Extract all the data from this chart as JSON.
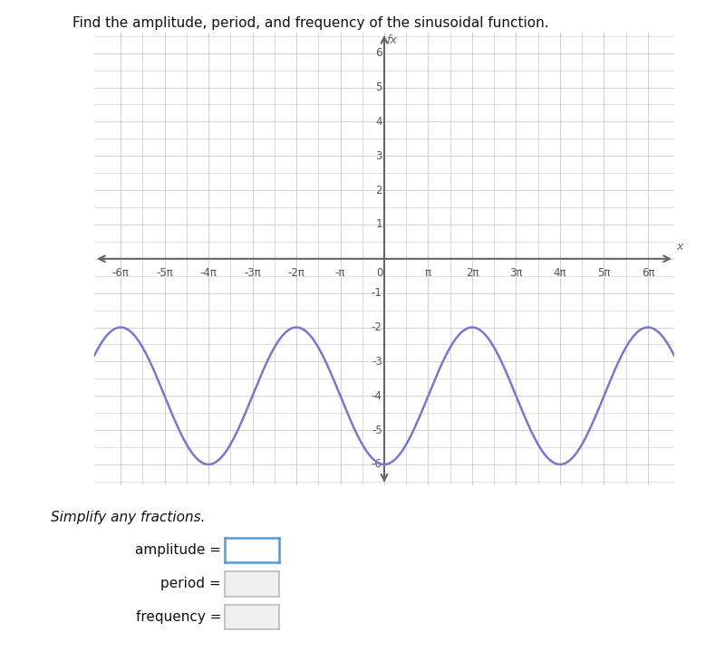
{
  "title": "Find the amplitude, period, and frequency of the sinusoidal function.",
  "xlabel_label": "x",
  "ylabel_label": "fx",
  "x_ticks_pi": [
    -6,
    -5,
    -4,
    -3,
    -2,
    -1,
    0,
    1,
    2,
    3,
    4,
    5,
    6
  ],
  "x_tick_labels": [
    "-6π",
    "-5π",
    "-4π",
    "-3π",
    "-2π",
    "-π",
    "0",
    "π",
    "2π",
    "3π",
    "4π",
    "5π",
    "6π"
  ],
  "y_ticks": [
    -6,
    -5,
    -4,
    -3,
    -2,
    -1,
    1,
    2,
    3,
    4,
    5,
    6
  ],
  "curve_color": "#7878cc",
  "curve_linewidth": 1.8,
  "grid_color": "#cccccc",
  "grid_linewidth": 0.5,
  "background_color": "#ffffff",
  "axis_color": "#666666",
  "tick_label_color": "#555555",
  "simplify_text": "Simplify any fractions.",
  "amplitude_label": "amplitude =",
  "period_label": "period =",
  "frequency_label": "frequency ="
}
